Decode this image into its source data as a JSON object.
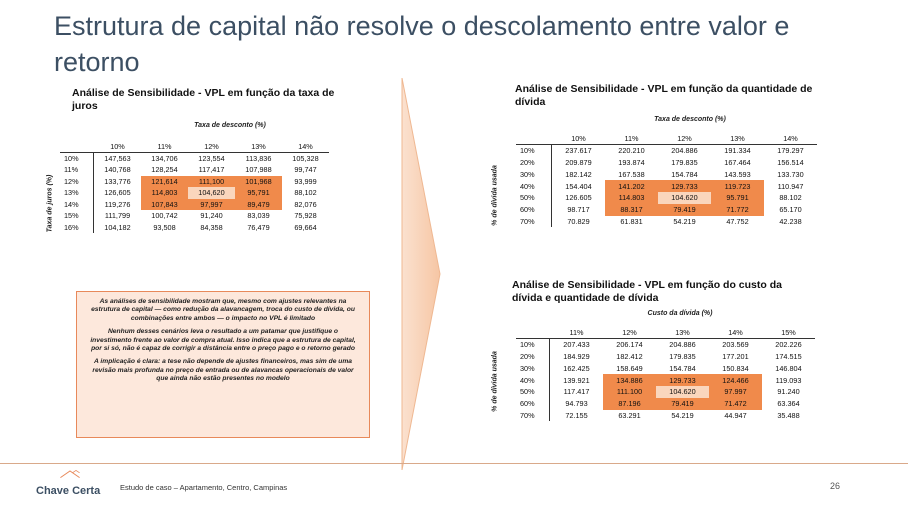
{
  "title": "Estrutura de capital não resolve o descolamento entre valor e retorno",
  "table1": {
    "title": "Análise de Sensibilidade - VPL em função da taxa de juros",
    "col_axis": "Taxa de desconto (%)",
    "row_axis": "Taxa de juros (%)",
    "cols": [
      "10%",
      "11%",
      "12%",
      "13%",
      "14%"
    ],
    "rows": [
      {
        "label": "10%",
        "values": [
          "147,563",
          "134,706",
          "123,554",
          "113,836",
          "105,328"
        ]
      },
      {
        "label": "11%",
        "values": [
          "140,768",
          "128,254",
          "117,417",
          "107,988",
          "99,747"
        ]
      },
      {
        "label": "12%",
        "values": [
          "133,776",
          "121,614",
          "111,100",
          "101,968",
          "93,999"
        ]
      },
      {
        "label": "13%",
        "values": [
          "126,605",
          "114,803",
          "104,620",
          "95,791",
          "88,102"
        ]
      },
      {
        "label": "14%",
        "values": [
          "119,276",
          "107,843",
          "97,997",
          "89,479",
          "82,076"
        ]
      },
      {
        "label": "15%",
        "values": [
          "111,799",
          "100,742",
          "91,240",
          "83,039",
          "75,928"
        ]
      },
      {
        "label": "16%",
        "values": [
          "104,182",
          "93,508",
          "84,358",
          "76,479",
          "69,664"
        ]
      }
    ]
  },
  "table2": {
    "title": "Análise de Sensibilidade - VPL em função da quantidade de dívida",
    "col_axis": "Taxa de desconto (%)",
    "row_axis": "% de dívida usada",
    "cols": [
      "10%",
      "11%",
      "12%",
      "13%",
      "14%"
    ],
    "rows": [
      {
        "label": "10%",
        "values": [
          "237.617",
          "220.210",
          "204.886",
          "191.334",
          "179.297"
        ]
      },
      {
        "label": "20%",
        "values": [
          "209.879",
          "193.874",
          "179.835",
          "167.464",
          "156.514"
        ]
      },
      {
        "label": "30%",
        "values": [
          "182.142",
          "167.538",
          "154.784",
          "143.593",
          "133.730"
        ]
      },
      {
        "label": "40%",
        "values": [
          "154.404",
          "141.202",
          "129.733",
          "119.723",
          "110.947"
        ]
      },
      {
        "label": "50%",
        "values": [
          "126.605",
          "114.803",
          "104.620",
          "95.791",
          "88.102"
        ]
      },
      {
        "label": "60%",
        "values": [
          "98.717",
          "88.317",
          "79.419",
          "71.772",
          "65.170"
        ]
      },
      {
        "label": "70%",
        "values": [
          "70.829",
          "61.831",
          "54.219",
          "47.752",
          "42.238"
        ]
      }
    ]
  },
  "table3": {
    "title": "Análise de Sensibilidade - VPL em função do custo da dívida e quantidade de dívida",
    "col_axis": "Custo da dívida (%)",
    "row_axis": "% de dívida usada",
    "cols": [
      "11%",
      "12%",
      "13%",
      "14%",
      "15%"
    ],
    "rows": [
      {
        "label": "10%",
        "values": [
          "207.433",
          "206.174",
          "204.886",
          "203.569",
          "202.226"
        ]
      },
      {
        "label": "20%",
        "values": [
          "184.929",
          "182.412",
          "179.835",
          "177.201",
          "174.515"
        ]
      },
      {
        "label": "30%",
        "values": [
          "162.425",
          "158.649",
          "154.784",
          "150.834",
          "146.804"
        ]
      },
      {
        "label": "40%",
        "values": [
          "139.921",
          "134.886",
          "129.733",
          "124.466",
          "119.093"
        ]
      },
      {
        "label": "50%",
        "values": [
          "117.417",
          "111.100",
          "104.620",
          "97.997",
          "91.240"
        ]
      },
      {
        "label": "60%",
        "values": [
          "94.793",
          "87.196",
          "79.419",
          "71.472",
          "63.364"
        ]
      },
      {
        "label": "70%",
        "values": [
          "72.155",
          "63.291",
          "54.219",
          "44.947",
          "35.488"
        ]
      }
    ]
  },
  "highlight": {
    "orange": "#f08a4b",
    "center": "#fad6bd"
  },
  "note": {
    "p1": "As análises de sensibilidade mostram que, mesmo com ajustes relevantes na estrutura de capital — como redução da alavancagem, troca do custo de dívida, ou combinações entre ambos — o impacto no VPL é limitado",
    "p2": "Nenhum desses cenários leva o resultado a um patamar que justifique o investimento frente ao valor de compra atual. Isso indica que a estrutura de capital, por si só, não é capaz de corrigir a distância entre o preço pago e o retorno gerado",
    "p3": "A implicação é clara: a tese não depende de ajustes financeiros, mas sim de uma revisão mais profunda no preço de entrada ou de alavancas operacionais de valor que ainda não estão presentes no modelo"
  },
  "footer": {
    "brand": "Chave Certa",
    "caption": "Estudo de caso – Apartamento, Centro, Campinas",
    "page": "26"
  }
}
